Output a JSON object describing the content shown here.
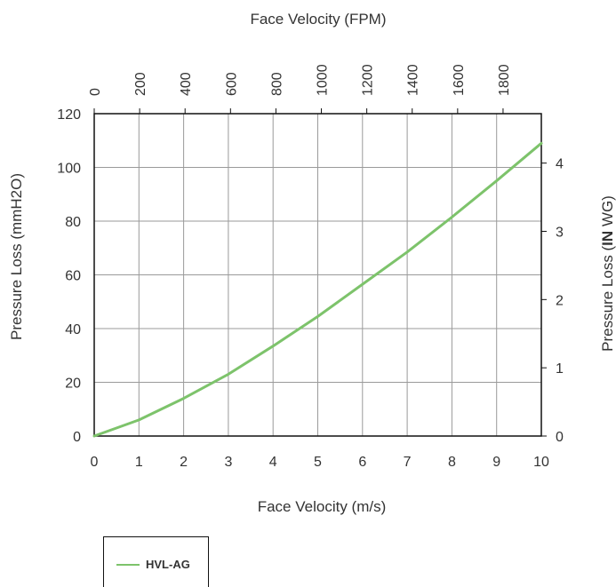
{
  "chart_data": {
    "type": "line",
    "x_top_label": "Face Velocity (FPM)",
    "x_bottom_label": "Face Velocity (m/s)",
    "y_left_label": "Pressure Loss (mmH2O)",
    "y_right_label_prefix": "Pressure Loss (",
    "y_right_label_bold": "IN",
    "y_right_label_suffix": " WG)",
    "xlim": [
      0,
      10
    ],
    "ylim": [
      0,
      120
    ],
    "x_bottom_ticks": [
      "0",
      "1",
      "2",
      "3",
      "4",
      "5",
      "6",
      "7",
      "8",
      "9",
      "10"
    ],
    "x_top_ticks": [
      "0",
      "200",
      "400",
      "600",
      "800",
      "1000",
      "1200",
      "1400",
      "1600",
      "1800"
    ],
    "y_left_ticks": [
      "0",
      "20",
      "40",
      "60",
      "80",
      "100",
      "120"
    ],
    "y_right_ticks": [
      "0",
      "1",
      "2",
      "3",
      "4"
    ],
    "grid": true,
    "legend_position": "bottom-left",
    "series": [
      {
        "name": "HVL-AG",
        "color": "#7dc36b",
        "x": [
          0,
          1,
          2,
          3,
          4,
          5,
          6,
          7,
          8,
          9,
          10
        ],
        "y": [
          0,
          6,
          14,
          23,
          33.5,
          44.5,
          56.5,
          68.5,
          81.5,
          95,
          109
        ]
      }
    ]
  }
}
